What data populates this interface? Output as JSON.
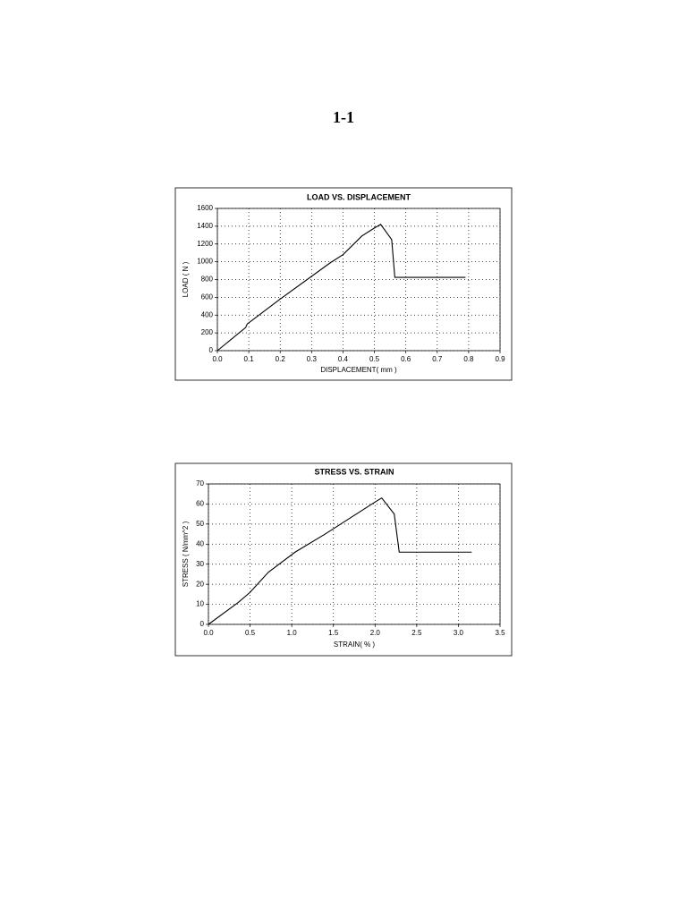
{
  "heading": "1-1",
  "chart_data": [
    {
      "type": "line",
      "title": "LOAD VS. DISPLACEMENT",
      "x_label": "DISPLACEMENT( mm )",
      "y_label": "LOAD ( N )",
      "series": [
        {
          "color": "#000000",
          "x": [
            0,
            0.09,
            0.095,
            0.2,
            0.36,
            0.4,
            0.46,
            0.5,
            0.52,
            0.555,
            0.565,
            0.79
          ],
          "values": [
            0,
            260,
            300,
            580,
            990,
            1080,
            1290,
            1380,
            1420,
            1250,
            825,
            825
          ]
        }
      ],
      "xlim": [
        0,
        0.9
      ],
      "xticks": [
        {
          "value": 0,
          "label": "0.0"
        },
        0.1,
        0.2,
        0.3,
        0.4,
        0.5,
        0.6,
        0.7,
        0.8,
        0.9
      ],
      "ylim": [
        0,
        1600
      ],
      "yticks": [
        0,
        200,
        400,
        600,
        800,
        1000,
        1200,
        1400,
        1600
      ],
      "grid": true
    },
    {
      "type": "line",
      "title": "STRESS VS. STRAIN",
      "x_label": "STRAIN( % )",
      "y_label": "STRESS ( N/mm^2 )",
      "series": [
        {
          "color": "#000000",
          "x": [
            0,
            0.36,
            0.5,
            0.72,
            1.04,
            1.4,
            1.85,
            2.0,
            2.08,
            2.23,
            2.29,
            3.16
          ],
          "values": [
            0,
            11,
            16,
            26,
            36,
            45,
            57,
            61,
            63,
            55,
            36,
            36
          ]
        }
      ],
      "xlim": [
        0,
        3.5
      ],
      "xticks": [
        {
          "value": 0,
          "label": "0.0"
        },
        0.5,
        {
          "value": 1,
          "label": "1.0"
        },
        1.5,
        {
          "value": 2,
          "label": "2.0"
        },
        2.5,
        {
          "value": 3,
          "label": "3.0"
        },
        3.5
      ],
      "ylim": [
        0,
        70
      ],
      "yticks": [
        0,
        10,
        20,
        30,
        40,
        50,
        60,
        70
      ],
      "grid": true
    }
  ]
}
